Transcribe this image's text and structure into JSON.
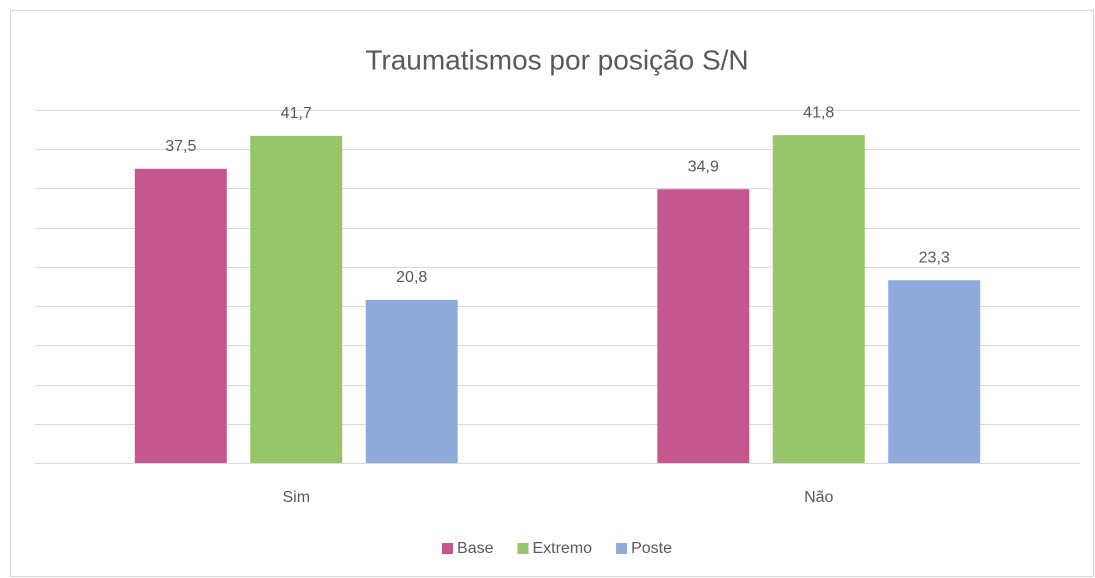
{
  "chart_data": {
    "type": "bar",
    "title": "Traumatismos por posição S/N",
    "categories": [
      "Sim",
      "Não"
    ],
    "series": [
      {
        "name": "Base",
        "color": "#c5568e",
        "values": [
          37.5,
          34.9
        ],
        "value_labels": [
          "37,5",
          "34,9"
        ]
      },
      {
        "name": "Extremo",
        "color": "#98c46a",
        "values": [
          41.7,
          41.8
        ],
        "value_labels": [
          "41,7",
          "41,8"
        ]
      },
      {
        "name": "Poste",
        "color": "#8faadc",
        "values": [
          20.8,
          23.3
        ],
        "value_labels": [
          "20,8",
          "23,3"
        ]
      }
    ],
    "ylim": [
      0,
      45
    ],
    "yticks": [
      0,
      5,
      10,
      15,
      20,
      25,
      30,
      35,
      40,
      45
    ],
    "grid": true,
    "legend": "bottom"
  }
}
